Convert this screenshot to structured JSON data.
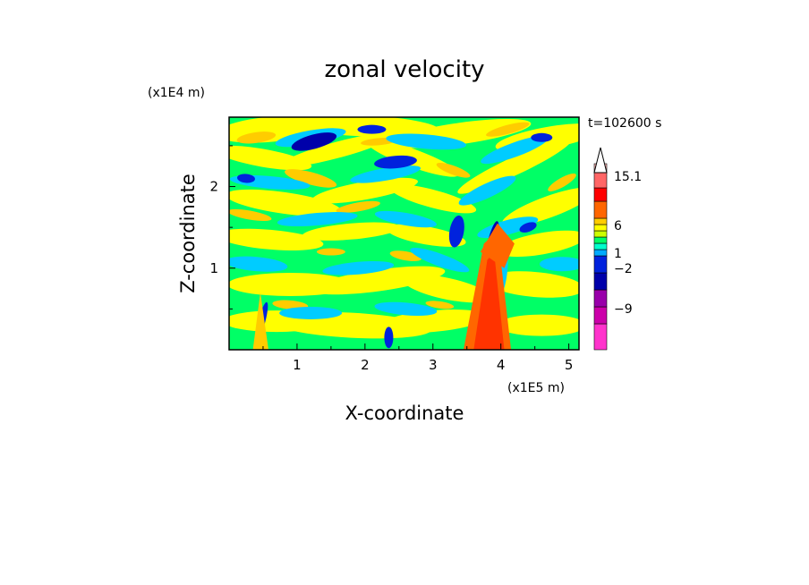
{
  "chart_data": {
    "type": "heatmap",
    "title": "zonal velocity",
    "xlabel": "X-coordinate",
    "ylabel": "Z-coordinate",
    "x_unit": "(x1E5 m)",
    "y_unit": "(x1E4 m)",
    "time_label": "t=102600 s",
    "xlim": [
      0,
      5.15
    ],
    "ylim": [
      0,
      2.85
    ],
    "x_ticks": [
      "1",
      "2",
      "3",
      "4",
      "5"
    ],
    "y_ticks": [
      "1",
      "2"
    ],
    "colorbar": {
      "labels": [
        "15.1",
        "6",
        "1",
        "−2",
        "−9"
      ],
      "levels": [
        -15,
        -12,
        -9,
        -6,
        -3,
        -2,
        -1,
        0,
        1,
        2,
        3,
        6,
        9,
        12,
        15.1
      ],
      "colors": [
        "#ff33cc",
        "#cc00aa",
        "#9900aa",
        "#0000aa",
        "#0022dd",
        "#00aaff",
        "#00ffcc",
        "#00ff66",
        "#ccff00",
        "#ffff00",
        "#ffcc00",
        "#ff6600",
        "#ff0000",
        "#ff6666",
        "#ffbbbb",
        "#ffffff"
      ]
    },
    "colors": {
      "background": "#00ff66",
      "yellow": "#ffff00",
      "orange": "#ffcc00",
      "dark_orange": "#ff6600",
      "cyan": "#00ccff",
      "blue": "#0022dd",
      "dark_blue": "#0000aa"
    }
  }
}
